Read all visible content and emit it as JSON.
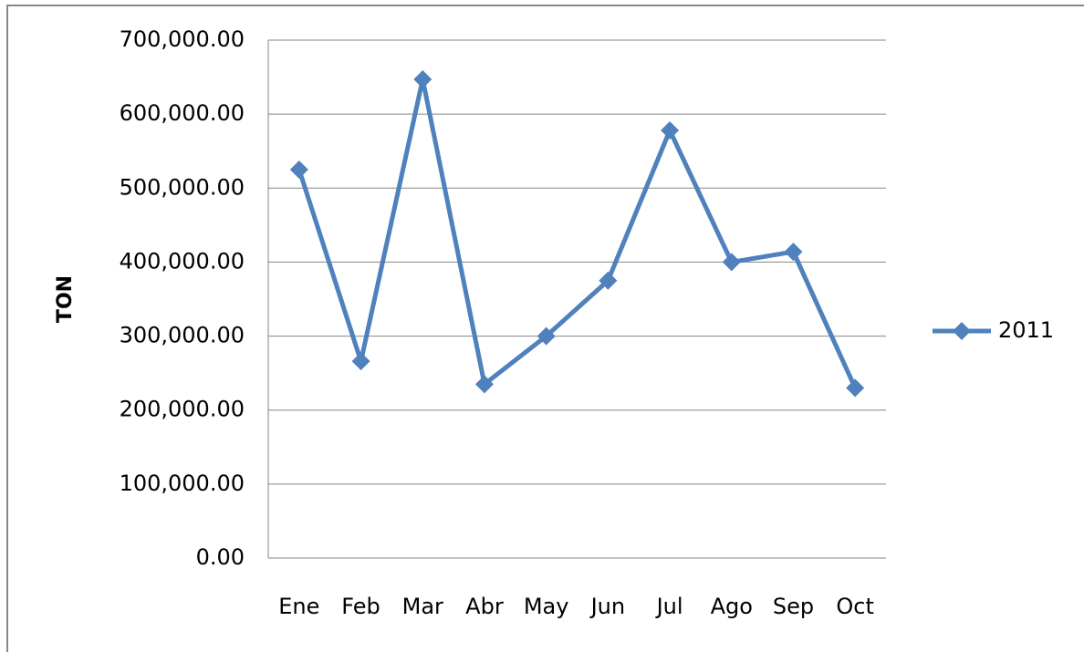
{
  "chart_data": {
    "type": "line",
    "y_label": "TON",
    "categories": [
      "Ene",
      "Feb",
      "Mar",
      "Abr",
      "May",
      "Jun",
      "Jul",
      "Ago",
      "Sep",
      "Oct"
    ],
    "series": [
      {
        "name": "2011",
        "color": "#4f81bd",
        "values": [
          525000,
          266000,
          647000,
          235000,
          300000,
          375000,
          578000,
          400000,
          414000,
          230000
        ]
      }
    ],
    "ylim": [
      0,
      700000
    ],
    "yticks": [
      {
        "value": 0,
        "label": "0.00"
      },
      {
        "value": 100000,
        "label": "100,000.00"
      },
      {
        "value": 200000,
        "label": "200,000.00"
      },
      {
        "value": 300000,
        "label": "300,000.00"
      },
      {
        "value": 400000,
        "label": "400,000.00"
      },
      {
        "value": 500000,
        "label": "500,000.00"
      },
      {
        "value": 600000,
        "label": "600,000.00"
      },
      {
        "value": 700000,
        "label": "700,000.00"
      }
    ],
    "grid": true,
    "legend": "right"
  }
}
